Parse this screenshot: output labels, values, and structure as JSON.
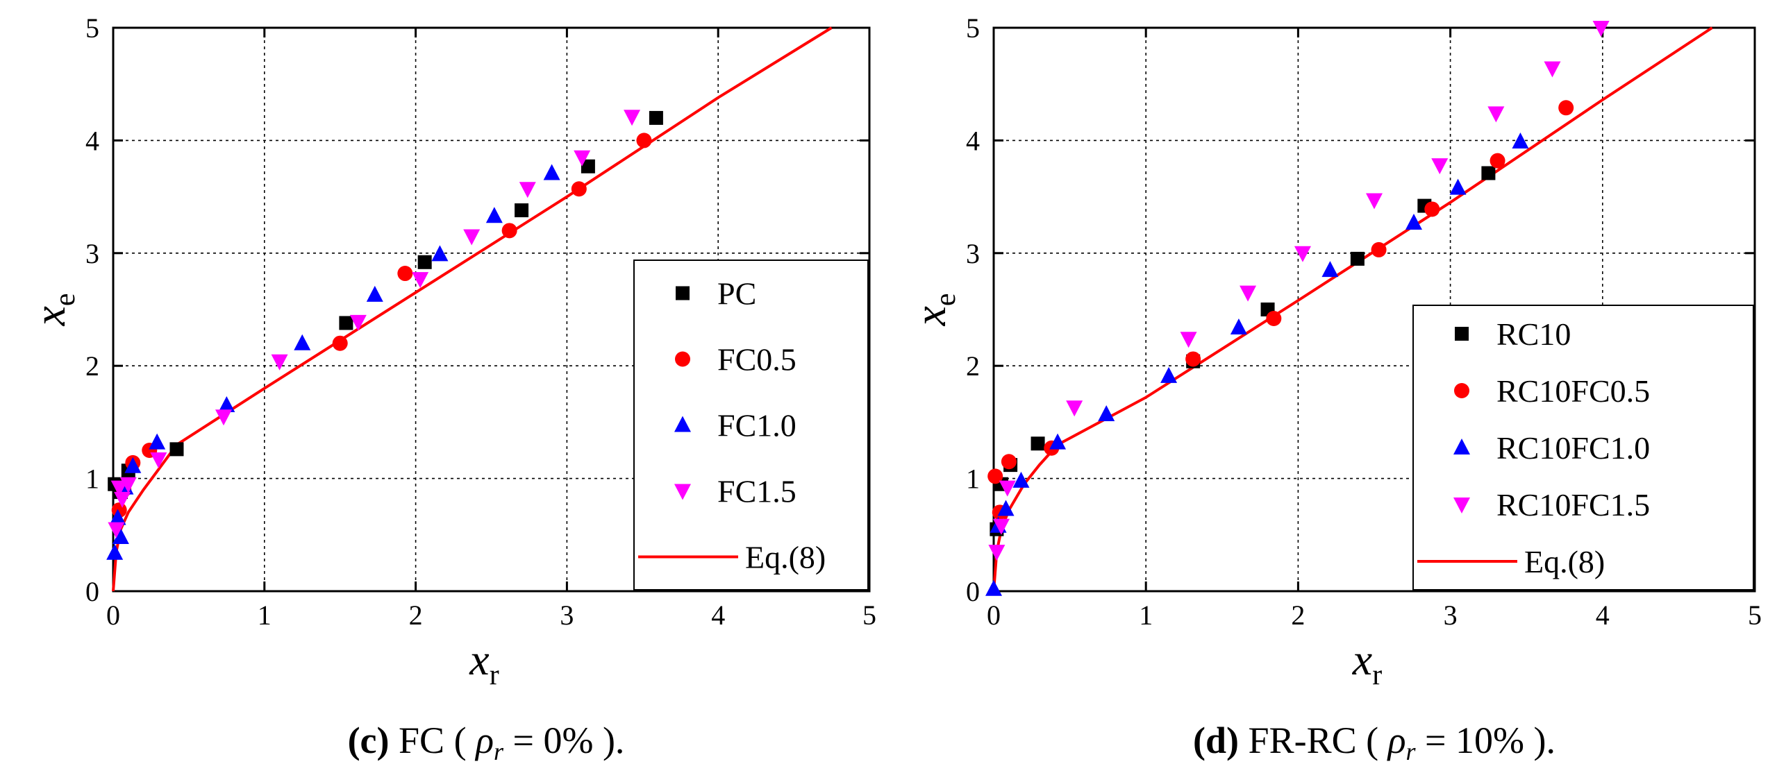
{
  "chart_data": [
    {
      "type": "scatter",
      "caption": {
        "label": "(c)",
        "text": "FC (",
        "rho": "ρ",
        "rho_sub": "r",
        "eq": "= 0%",
        "close": ")."
      },
      "xlabel": {
        "main": "x",
        "sub": "r"
      },
      "ylabel": {
        "main": "x",
        "sub": "e"
      },
      "xlim": [
        0,
        5
      ],
      "ylim": [
        0,
        5
      ],
      "xticks": [
        "0",
        "1",
        "2",
        "3",
        "4",
        "5"
      ],
      "yticks": [
        "0",
        "1",
        "2",
        "3",
        "4",
        "5"
      ],
      "grid": true,
      "legend_position": "bottom-right",
      "series": [
        {
          "name": "PC",
          "marker": "square",
          "color": "#000000",
          "points": [
            [
              0.01,
              0.95
            ],
            [
              0.05,
              0.88
            ],
            [
              0.1,
              1.07
            ],
            [
              0.42,
              1.26
            ],
            [
              1.54,
              2.38
            ],
            [
              2.06,
              2.92
            ],
            [
              2.7,
              3.38
            ],
            [
              3.14,
              3.77
            ],
            [
              3.59,
              4.2
            ]
          ]
        },
        {
          "name": "FC0.5",
          "marker": "circle",
          "color": "#ff0000",
          "points": [
            [
              0.04,
              0.72
            ],
            [
              0.07,
              0.9
            ],
            [
              0.13,
              1.14
            ],
            [
              0.24,
              1.25
            ],
            [
              1.5,
              2.2
            ],
            [
              1.93,
              2.82
            ],
            [
              2.62,
              3.2
            ],
            [
              3.08,
              3.57
            ],
            [
              3.51,
              4.0
            ]
          ]
        },
        {
          "name": "FC1.0",
          "marker": "triangle-up",
          "color": "#0000ff",
          "points": [
            [
              0.01,
              0.34
            ],
            [
              0.03,
              0.65
            ],
            [
              0.05,
              0.48
            ],
            [
              0.08,
              0.92
            ],
            [
              0.13,
              1.11
            ],
            [
              0.29,
              1.32
            ],
            [
              0.75,
              1.65
            ],
            [
              1.25,
              2.2
            ],
            [
              1.73,
              2.63
            ],
            [
              2.16,
              2.99
            ],
            [
              2.52,
              3.33
            ],
            [
              2.9,
              3.71
            ]
          ]
        },
        {
          "name": "FC1.5",
          "marker": "triangle-down",
          "color": "#ff00ff",
          "points": [
            [
              0.02,
              0.55
            ],
            [
              0.04,
              0.92
            ],
            [
              0.06,
              0.82
            ],
            [
              0.1,
              0.95
            ],
            [
              0.3,
              1.17
            ],
            [
              0.73,
              1.55
            ],
            [
              1.1,
              2.04
            ],
            [
              1.62,
              2.39
            ],
            [
              2.03,
              2.77
            ],
            [
              2.37,
              3.15
            ],
            [
              2.74,
              3.57
            ],
            [
              3.1,
              3.85
            ],
            [
              3.43,
              4.21
            ]
          ]
        }
      ],
      "fit": {
        "name": "Eq.(8)",
        "color": "#ff0000",
        "points": [
          [
            0,
            0
          ],
          [
            0.02,
            0.35
          ],
          [
            0.05,
            0.55
          ],
          [
            0.1,
            0.7
          ],
          [
            0.2,
            0.9
          ],
          [
            0.3,
            1.08
          ],
          [
            0.42,
            1.3
          ],
          [
            1,
            1.8
          ],
          [
            2,
            2.65
          ],
          [
            3,
            3.5
          ],
          [
            4,
            4.38
          ],
          [
            4.75,
            5.0
          ]
        ]
      }
    },
    {
      "type": "scatter",
      "caption": {
        "label": "(d)",
        "text": "FR-RC (",
        "rho": "ρ",
        "rho_sub": "r",
        "eq": "= 10%",
        "close": ")."
      },
      "xlabel": {
        "main": "x",
        "sub": "r"
      },
      "ylabel": {
        "main": "x",
        "sub": "e"
      },
      "xlim": [
        0,
        5
      ],
      "ylim": [
        0,
        5
      ],
      "xticks": [
        "0",
        "1",
        "2",
        "3",
        "4",
        "5"
      ],
      "yticks": [
        "0",
        "1",
        "2",
        "3",
        "4",
        "5"
      ],
      "grid": true,
      "legend_position": "bottom-right",
      "series": [
        {
          "name": "RC10",
          "marker": "square",
          "color": "#000000",
          "points": [
            [
              0.02,
              0.55
            ],
            [
              0.05,
              0.95
            ],
            [
              0.11,
              1.12
            ],
            [
              0.29,
              1.31
            ],
            [
              1.31,
              2.04
            ],
            [
              1.8,
              2.5
            ],
            [
              2.39,
              2.95
            ],
            [
              2.83,
              3.42
            ],
            [
              3.25,
              3.71
            ]
          ]
        },
        {
          "name": "RC10FC0.5",
          "marker": "circle",
          "color": "#ff0000",
          "points": [
            [
              0.01,
              1.02
            ],
            [
              0.04,
              0.7
            ],
            [
              0.1,
              1.15
            ],
            [
              0.38,
              1.27
            ],
            [
              1.31,
              2.06
            ],
            [
              1.84,
              2.42
            ],
            [
              2.53,
              3.03
            ],
            [
              2.88,
              3.39
            ],
            [
              3.31,
              3.82
            ],
            [
              3.76,
              4.29
            ]
          ]
        },
        {
          "name": "RC10FC1.0",
          "marker": "triangle-up",
          "color": "#0000ff",
          "points": [
            [
              0.0,
              0.02
            ],
            [
              0.03,
              0.58
            ],
            [
              0.08,
              0.73
            ],
            [
              0.18,
              0.98
            ],
            [
              0.42,
              1.32
            ],
            [
              0.74,
              1.57
            ],
            [
              1.15,
              1.91
            ],
            [
              1.61,
              2.34
            ],
            [
              2.21,
              2.85
            ],
            [
              2.76,
              3.27
            ],
            [
              3.05,
              3.58
            ],
            [
              3.46,
              3.99
            ]
          ]
        },
        {
          "name": "RC10FC1.5",
          "marker": "triangle-down",
          "color": "#ff00ff",
          "points": [
            [
              0.02,
              0.35
            ],
            [
              0.05,
              0.58
            ],
            [
              0.09,
              0.92
            ],
            [
              0.53,
              1.63
            ],
            [
              1.28,
              2.24
            ],
            [
              1.67,
              2.65
            ],
            [
              2.03,
              3.0
            ],
            [
              2.5,
              3.47
            ],
            [
              2.93,
              3.78
            ],
            [
              3.3,
              4.24
            ],
            [
              3.67,
              4.64
            ],
            [
              3.99,
              5.0
            ]
          ]
        }
      ],
      "fit": {
        "name": "Eq.(8)",
        "color": "#ff0000",
        "points": [
          [
            0,
            0
          ],
          [
            0.02,
            0.35
          ],
          [
            0.05,
            0.55
          ],
          [
            0.1,
            0.72
          ],
          [
            0.2,
            0.95
          ],
          [
            0.3,
            1.12
          ],
          [
            0.42,
            1.3
          ],
          [
            1,
            1.72
          ],
          [
            2,
            2.58
          ],
          [
            3,
            3.45
          ],
          [
            4,
            4.36
          ],
          [
            4.72,
            5.0
          ]
        ]
      }
    }
  ]
}
